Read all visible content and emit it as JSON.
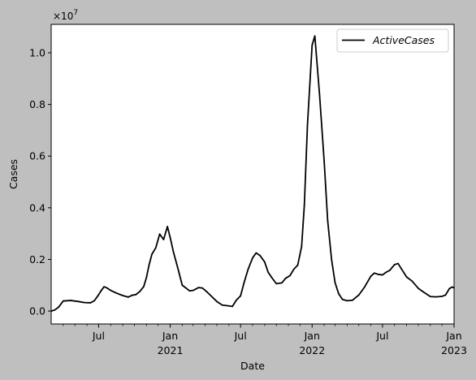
{
  "chart_data": {
    "type": "line",
    "xlabel": "Date",
    "ylabel": "Cases",
    "y_multiplier_label": "×10^7",
    "xlim": [
      "2020-03-01",
      "2023-01-01"
    ],
    "ylim": [
      -500000,
      11100000
    ],
    "y_ticks": [
      0,
      2000000,
      4000000,
      6000000,
      8000000,
      10000000
    ],
    "y_tick_labels": [
      "0.0",
      "0.2",
      "0.4",
      "0.6",
      "0.8",
      "1.0"
    ],
    "x_ticks": [
      {
        "date": "2020-07-01",
        "label": "Jul",
        "sublabel": ""
      },
      {
        "date": "2021-01-01",
        "label": "Jan",
        "sublabel": "2021"
      },
      {
        "date": "2021-07-01",
        "label": "Jul",
        "sublabel": ""
      },
      {
        "date": "2022-01-01",
        "label": "Jan",
        "sublabel": "2022"
      },
      {
        "date": "2022-07-01",
        "label": "Jul",
        "sublabel": ""
      },
      {
        "date": "2023-01-01",
        "label": "Jan",
        "sublabel": "2023"
      }
    ],
    "minor_x_ticks": [
      "2020-04-01",
      "2020-05-01",
      "2020-06-01",
      "2020-08-01",
      "2020-09-01",
      "2020-10-01",
      "2020-11-01",
      "2020-12-01",
      "2021-02-01",
      "2021-03-01",
      "2021-04-01",
      "2021-05-01",
      "2021-06-01",
      "2021-08-01",
      "2021-09-01",
      "2021-10-01",
      "2021-11-01",
      "2021-12-01",
      "2022-02-01",
      "2022-03-01",
      "2022-04-01",
      "2022-05-01",
      "2022-06-01",
      "2022-08-01",
      "2022-09-01",
      "2022-10-01",
      "2022-11-01",
      "2022-12-01"
    ],
    "grid": false,
    "legend_position": "top-right",
    "series": [
      {
        "name": "ActiveCases",
        "color": "#000000",
        "points": [
          [
            "2020-03-01",
            0
          ],
          [
            "2020-03-10",
            40000
          ],
          [
            "2020-03-20",
            150000
          ],
          [
            "2020-04-01",
            390000
          ],
          [
            "2020-04-20",
            410000
          ],
          [
            "2020-05-10",
            370000
          ],
          [
            "2020-05-25",
            330000
          ],
          [
            "2020-06-10",
            320000
          ],
          [
            "2020-06-20",
            400000
          ],
          [
            "2020-06-30",
            610000
          ],
          [
            "2020-07-08",
            800000
          ],
          [
            "2020-07-15",
            940000
          ],
          [
            "2020-07-22",
            900000
          ],
          [
            "2020-08-01",
            800000
          ],
          [
            "2020-08-15",
            700000
          ],
          [
            "2020-09-01",
            600000
          ],
          [
            "2020-09-15",
            540000
          ],
          [
            "2020-09-25",
            610000
          ],
          [
            "2020-10-05",
            640000
          ],
          [
            "2020-10-15",
            760000
          ],
          [
            "2020-10-25",
            950000
          ],
          [
            "2020-11-01",
            1300000
          ],
          [
            "2020-11-08",
            1800000
          ],
          [
            "2020-11-15",
            2200000
          ],
          [
            "2020-11-25",
            2450000
          ],
          [
            "2020-12-05",
            2980000
          ],
          [
            "2020-12-15",
            2770000
          ],
          [
            "2020-12-25",
            3270000
          ],
          [
            "2021-01-01",
            2850000
          ],
          [
            "2021-01-10",
            2250000
          ],
          [
            "2021-01-20",
            1700000
          ],
          [
            "2021-02-01",
            1000000
          ],
          [
            "2021-02-10",
            900000
          ],
          [
            "2021-02-20",
            780000
          ],
          [
            "2021-03-01",
            800000
          ],
          [
            "2021-03-15",
            910000
          ],
          [
            "2021-03-25",
            890000
          ],
          [
            "2021-04-05",
            750000
          ],
          [
            "2021-04-20",
            530000
          ],
          [
            "2021-05-01",
            370000
          ],
          [
            "2021-05-15",
            230000
          ],
          [
            "2021-06-01",
            200000
          ],
          [
            "2021-06-10",
            180000
          ],
          [
            "2021-06-20",
            420000
          ],
          [
            "2021-07-01",
            590000
          ],
          [
            "2021-07-10",
            1100000
          ],
          [
            "2021-07-20",
            1600000
          ],
          [
            "2021-08-01",
            2060000
          ],
          [
            "2021-08-10",
            2250000
          ],
          [
            "2021-08-20",
            2150000
          ],
          [
            "2021-09-01",
            1900000
          ],
          [
            "2021-09-10",
            1500000
          ],
          [
            "2021-09-20",
            1280000
          ],
          [
            "2021-10-01",
            1060000
          ],
          [
            "2021-10-15",
            1090000
          ],
          [
            "2021-10-25",
            1270000
          ],
          [
            "2021-11-05",
            1370000
          ],
          [
            "2021-11-15",
            1620000
          ],
          [
            "2021-11-25",
            1780000
          ],
          [
            "2021-12-05",
            2500000
          ],
          [
            "2021-12-12",
            4100000
          ],
          [
            "2021-12-20",
            7200000
          ],
          [
            "2022-01-01",
            10300000
          ],
          [
            "2022-01-08",
            10650000
          ],
          [
            "2022-01-20",
            8400000
          ],
          [
            "2022-02-01",
            5800000
          ],
          [
            "2022-02-10",
            3500000
          ],
          [
            "2022-02-20",
            2000000
          ],
          [
            "2022-03-01",
            1100000
          ],
          [
            "2022-03-10",
            680000
          ],
          [
            "2022-03-20",
            450000
          ],
          [
            "2022-04-01",
            400000
          ],
          [
            "2022-04-15",
            420000
          ],
          [
            "2022-05-01",
            620000
          ],
          [
            "2022-05-15",
            910000
          ],
          [
            "2022-06-01",
            1350000
          ],
          [
            "2022-06-10",
            1470000
          ],
          [
            "2022-06-20",
            1420000
          ],
          [
            "2022-07-01",
            1400000
          ],
          [
            "2022-07-10",
            1500000
          ],
          [
            "2022-07-20",
            1580000
          ],
          [
            "2022-08-01",
            1800000
          ],
          [
            "2022-08-10",
            1840000
          ],
          [
            "2022-08-20",
            1600000
          ],
          [
            "2022-09-01",
            1320000
          ],
          [
            "2022-09-15",
            1160000
          ],
          [
            "2022-10-01",
            880000
          ],
          [
            "2022-10-15",
            730000
          ],
          [
            "2022-11-01",
            560000
          ],
          [
            "2022-11-15",
            550000
          ],
          [
            "2022-12-01",
            570000
          ],
          [
            "2022-12-10",
            620000
          ],
          [
            "2022-12-20",
            870000
          ],
          [
            "2022-12-27",
            930000
          ],
          [
            "2023-01-01",
            900000
          ]
        ]
      }
    ]
  }
}
